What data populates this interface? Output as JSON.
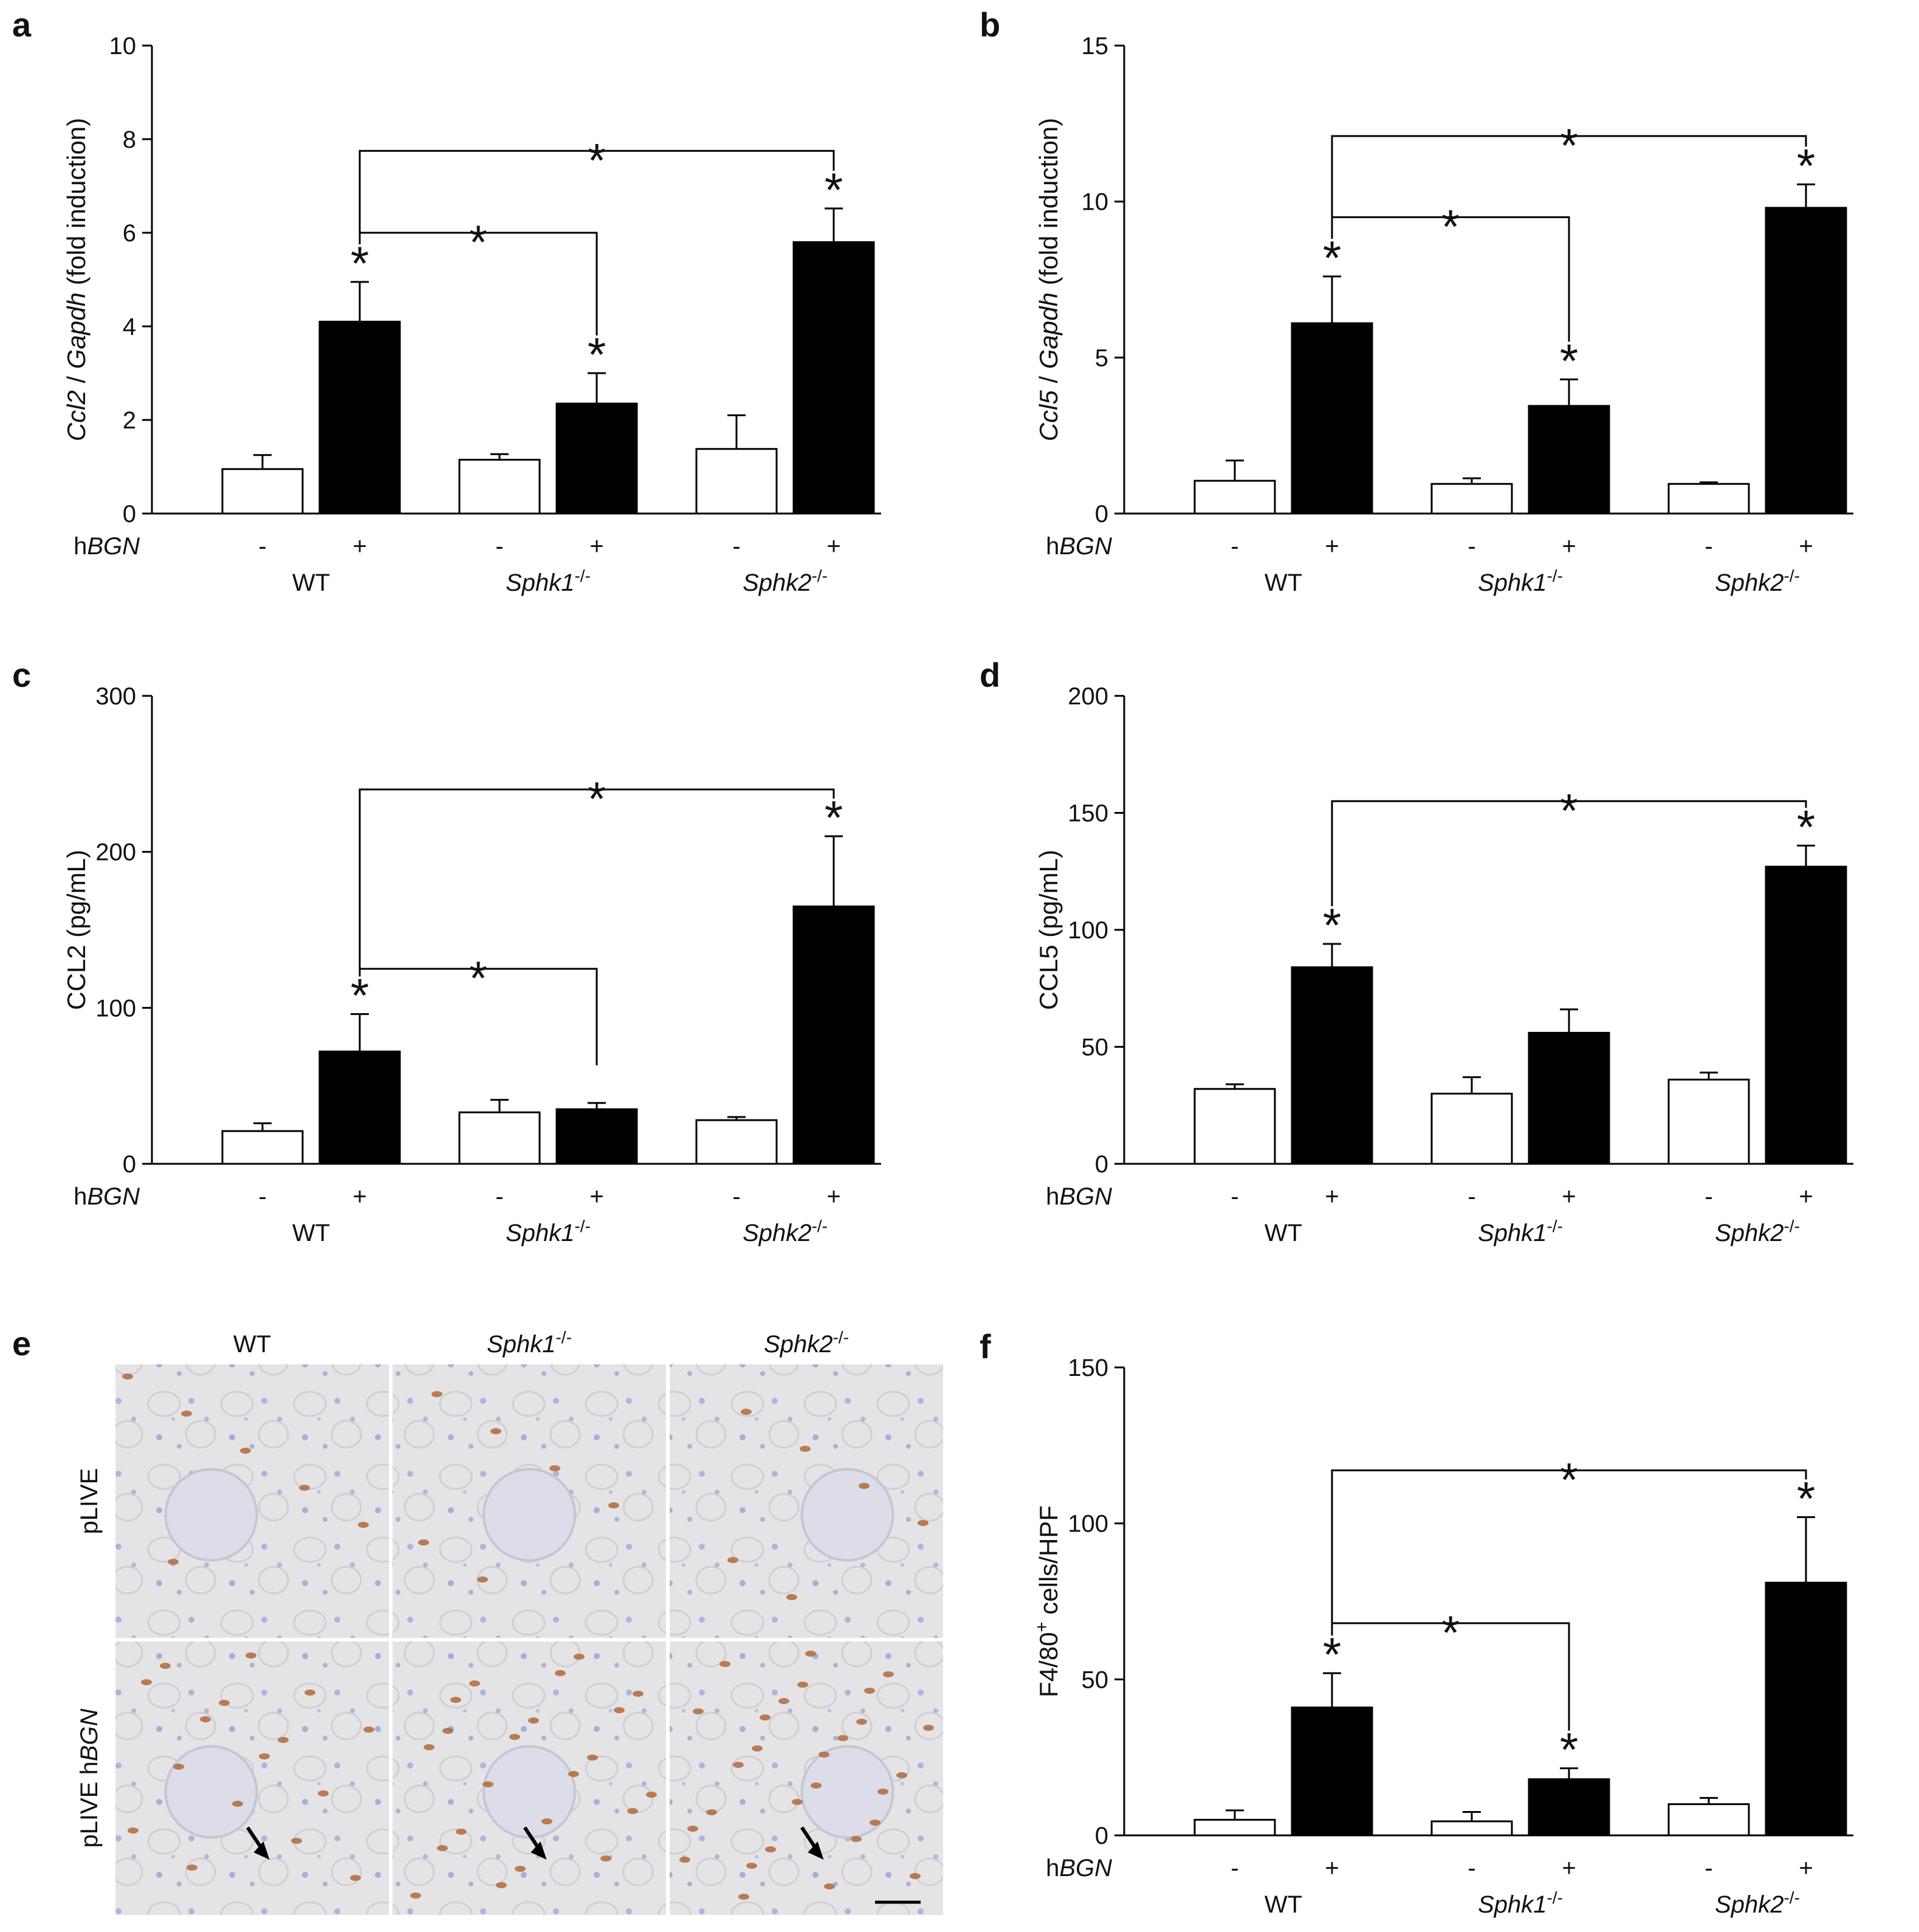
{
  "colors": {
    "treated": "#000000",
    "control": "#ffffff",
    "stroke": "#000000"
  },
  "panel_e": {
    "letter": "e",
    "columns": [
      {
        "base": "WT",
        "sup": ""
      },
      {
        "base": "Sphk1",
        "sup": "-/-"
      },
      {
        "base": "Sphk2",
        "sup": "-/-"
      }
    ],
    "rows": [
      {
        "pre": "pLIVE",
        "it": ""
      },
      {
        "pre": "pLIVE h",
        "it": "BGN"
      }
    ]
  },
  "chart_data": [
    {
      "letter": "a",
      "type": "bar",
      "ylabel_parts": [
        {
          "t": "Ccl2",
          "i": true
        },
        {
          "t": " / ",
          "i": false
        },
        {
          "t": "Gapdh",
          "i": true
        },
        {
          "t": " (fold induction)",
          "i": false
        }
      ],
      "ylim": [
        0,
        10
      ],
      "yticks": [
        0,
        2,
        4,
        6,
        8,
        10
      ],
      "row_label": {
        "pre": "h",
        "it": "BGN"
      },
      "groups": [
        {
          "name": {
            "base": "WT",
            "sup": ""
          },
          "minus": 0.95,
          "minus_err": 0.3,
          "plus": 4.1,
          "plus_err": 0.85,
          "star": true
        },
        {
          "name": {
            "base": "Sphk1",
            "sup": "-/-"
          },
          "minus": 1.15,
          "minus_err": 0.12,
          "plus": 2.35,
          "plus_err": 0.65,
          "star": true
        },
        {
          "name": {
            "base": "Sphk2",
            "sup": "-/-"
          },
          "minus": 1.38,
          "minus_err": 0.72,
          "plus": 5.8,
          "plus_err": 0.72,
          "star": true
        }
      ],
      "brackets": [
        {
          "from": 0,
          "to": 1,
          "level": 6.0,
          "label": "*"
        },
        {
          "from": 0,
          "to": 2,
          "level": 7.75,
          "label": "*"
        }
      ]
    },
    {
      "letter": "b",
      "type": "bar",
      "ylabel_parts": [
        {
          "t": "Ccl5",
          "i": true
        },
        {
          "t": " / ",
          "i": false
        },
        {
          "t": "Gapdh",
          "i": true
        },
        {
          "t": " (fold induction)",
          "i": false
        }
      ],
      "ylim": [
        0,
        15
      ],
      "yticks": [
        0,
        5,
        10,
        15
      ],
      "row_label": {
        "pre": "h",
        "it": "BGN"
      },
      "groups": [
        {
          "name": {
            "base": "WT",
            "sup": ""
          },
          "minus": 1.05,
          "minus_err": 0.65,
          "plus": 6.1,
          "plus_err": 1.5,
          "star": true
        },
        {
          "name": {
            "base": "Sphk1",
            "sup": "-/-"
          },
          "minus": 0.95,
          "minus_err": 0.18,
          "plus": 3.45,
          "plus_err": 0.85,
          "star": true
        },
        {
          "name": {
            "base": "Sphk2",
            "sup": "-/-"
          },
          "minus": 0.95,
          "minus_err": 0.05,
          "plus": 9.8,
          "plus_err": 0.75,
          "star": true
        }
      ],
      "brackets": [
        {
          "from": 0,
          "to": 1,
          "level": 9.5,
          "label": "*"
        },
        {
          "from": 0,
          "to": 2,
          "level": 12.1,
          "label": "*"
        }
      ]
    },
    {
      "letter": "c",
      "type": "bar",
      "ylabel_parts": [
        {
          "t": "CCL2  (pg/mL)",
          "i": false
        }
      ],
      "ylim": [
        0,
        300
      ],
      "yticks": [
        0,
        100,
        200,
        300
      ],
      "row_label": {
        "pre": "h",
        "it": "BGN"
      },
      "groups": [
        {
          "name": {
            "base": "WT",
            "sup": ""
          },
          "minus": 21,
          "minus_err": 5,
          "plus": 72,
          "plus_err": 24,
          "star": true
        },
        {
          "name": {
            "base": "Sphk1",
            "sup": "-/-"
          },
          "minus": 33,
          "minus_err": 8,
          "plus": 35,
          "plus_err": 4,
          "star": false
        },
        {
          "name": {
            "base": "Sphk2",
            "sup": "-/-"
          },
          "minus": 28,
          "minus_err": 2,
          "plus": 165,
          "plus_err": 45,
          "star": true
        }
      ],
      "brackets": [
        {
          "from": 0,
          "to": 1,
          "level": 125,
          "label": "*"
        },
        {
          "from": 0,
          "to": 2,
          "level": 240,
          "label": "*"
        }
      ]
    },
    {
      "letter": "d",
      "type": "bar",
      "ylabel_parts": [
        {
          "t": "CCL5  (pg/mL)",
          "i": false
        }
      ],
      "ylim": [
        0,
        200
      ],
      "yticks": [
        0,
        50,
        100,
        150,
        200
      ],
      "row_label": {
        "pre": "h",
        "it": "BGN"
      },
      "groups": [
        {
          "name": {
            "base": "WT",
            "sup": ""
          },
          "minus": 32,
          "minus_err": 2,
          "plus": 84,
          "plus_err": 10,
          "star": true
        },
        {
          "name": {
            "base": "Sphk1",
            "sup": "-/-"
          },
          "minus": 30,
          "minus_err": 7,
          "plus": 56,
          "plus_err": 10,
          "star": false
        },
        {
          "name": {
            "base": "Sphk2",
            "sup": "-/-"
          },
          "minus": 36,
          "minus_err": 3,
          "plus": 127,
          "plus_err": 9,
          "star": true
        }
      ],
      "brackets": [
        {
          "from": 0,
          "to": 2,
          "level": 155,
          "label": "*"
        }
      ]
    },
    {
      "letter": "f",
      "type": "bar",
      "ylabel_parts": [
        {
          "t": "F4/80",
          "i": false
        },
        {
          "t": "+",
          "i": false,
          "sup": true
        },
        {
          "t": " cells/HPF",
          "i": false
        }
      ],
      "ylim": [
        0,
        150
      ],
      "yticks": [
        0,
        50,
        100,
        150
      ],
      "row_label": {
        "pre": "h",
        "it": "BGN"
      },
      "groups": [
        {
          "name": {
            "base": "WT",
            "sup": ""
          },
          "minus": 5,
          "minus_err": 3,
          "plus": 41,
          "plus_err": 11,
          "star": true
        },
        {
          "name": {
            "base": "Sphk1",
            "sup": "-/-"
          },
          "minus": 4.5,
          "minus_err": 3,
          "plus": 18,
          "plus_err": 3.5,
          "star": true
        },
        {
          "name": {
            "base": "Sphk2",
            "sup": "-/-"
          },
          "minus": 10,
          "minus_err": 2,
          "plus": 81,
          "plus_err": 21,
          "star": true
        }
      ],
      "brackets": [
        {
          "from": 0,
          "to": 1,
          "level": 68,
          "label": "*"
        },
        {
          "from": 0,
          "to": 2,
          "level": 117,
          "label": "*"
        }
      ]
    }
  ]
}
